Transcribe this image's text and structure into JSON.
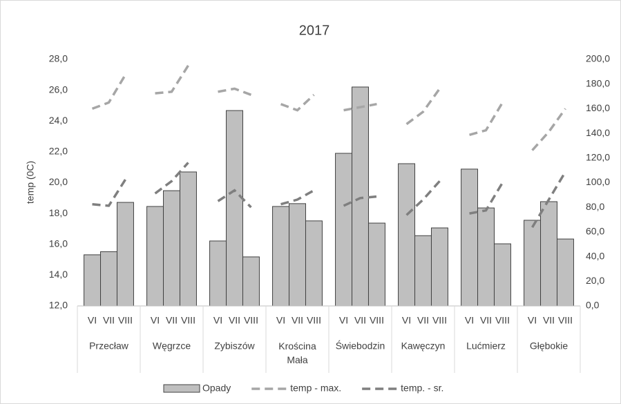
{
  "chart_data": {
    "type": "bar_line",
    "title": "2017",
    "y_label": "temp (0C)",
    "groups": [
      "Przecław",
      "Węgrzce",
      "Zybiszów",
      "Krościna Mała",
      "Świebodzin",
      "Kawęczyn",
      "Lućmierz",
      "Głębokie"
    ],
    "categories": [
      "VI",
      "VII",
      "VIII",
      "VI",
      "VII",
      "VIII",
      "VI",
      "VII",
      "VIII",
      "VI",
      "VII",
      "VIII",
      "VI",
      "VII",
      "VIII",
      "VI",
      "VII",
      "VIII",
      "VI",
      "VII",
      "VIII",
      "VI",
      "VII",
      "VIII"
    ],
    "series": [
      {
        "name": "Opady",
        "type": "bar",
        "axis": "y2",
        "color": "#bfbfbf",
        "values": [
          41.5,
          44,
          84,
          80.7,
          93.5,
          108.7,
          52.7,
          158.5,
          39.8,
          80.7,
          83,
          69,
          123.8,
          177.6,
          67.2,
          115.4,
          57,
          63.3,
          111,
          79.5,
          50.4,
          69.5,
          84.6,
          54.3
        ]
      },
      {
        "name": "temp - max.",
        "type": "line",
        "color": "#a6a6a6",
        "values": [
          24.8,
          25.2,
          27.0,
          25.8,
          25.9,
          27.6,
          25.9,
          26.1,
          25.7,
          25.1,
          24.7,
          25.7,
          24.7,
          24.9,
          25.1,
          23.8,
          24.6,
          26.1,
          23.1,
          23.4,
          25.2,
          22.1,
          23.3,
          24.8
        ]
      },
      {
        "name": "temp. - sr.",
        "type": "line",
        "color": "#7f7f7f",
        "values": [
          18.6,
          18.5,
          20.2,
          19.3,
          20.1,
          21.3,
          18.8,
          19.5,
          18.4,
          18.6,
          18.9,
          19.5,
          18.5,
          19.0,
          19.1,
          17.9,
          18.9,
          20.1,
          18.0,
          18.2,
          20.0,
          17.1,
          18.9,
          20.7
        ]
      }
    ],
    "ylim": [
      12,
      28
    ],
    "yticks": [
      {
        "value": 12,
        "label": "12,0"
      },
      {
        "value": 14,
        "label": "14,0"
      },
      {
        "value": 16,
        "label": "16,0"
      },
      {
        "value": 18,
        "label": "18,0"
      },
      {
        "value": 20,
        "label": "20,0"
      },
      {
        "value": 22,
        "label": "22,0"
      },
      {
        "value": 24,
        "label": "24,0"
      },
      {
        "value": 26,
        "label": "26,0"
      },
      {
        "value": 28,
        "label": "28,0"
      }
    ],
    "y2lim": [
      0,
      200
    ],
    "y2ticks": [
      {
        "value": 0,
        "label": "0,0"
      },
      {
        "value": 20,
        "label": "20,0"
      },
      {
        "value": 40,
        "label": "40,0"
      },
      {
        "value": 60,
        "label": "60,0"
      },
      {
        "value": 80,
        "label": "80,0"
      },
      {
        "value": 100,
        "label": "100,0"
      },
      {
        "value": 120,
        "label": "120,0"
      },
      {
        "value": 140,
        "label": "140,0"
      },
      {
        "value": 160,
        "label": "160,0"
      },
      {
        "value": 180,
        "label": "180,0"
      },
      {
        "value": 200,
        "label": "200,0"
      }
    ],
    "legend": "bottom"
  }
}
